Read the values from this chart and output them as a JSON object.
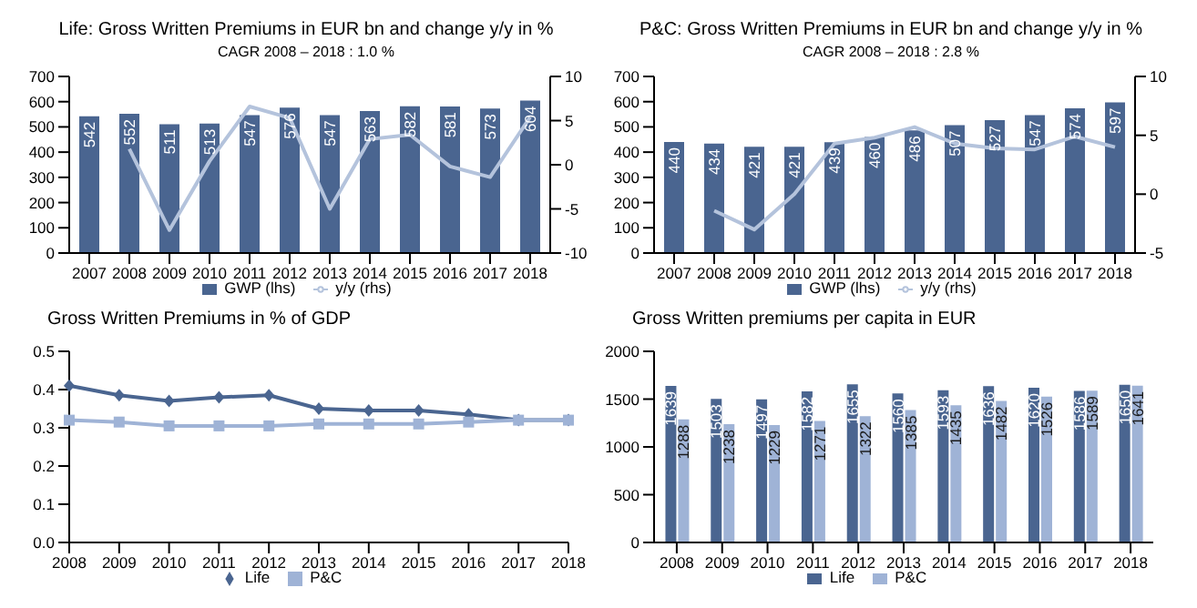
{
  "chart_data": [
    {
      "type": "bar",
      "title": "Life: Gross Written Premiums in EUR bn and change y/y in %",
      "subtitle": "CAGR 2008 – 2018 : 1.0 %",
      "categories": [
        "2007",
        "2008",
        "2009",
        "2010",
        "2011",
        "2012",
        "2013",
        "2014",
        "2015",
        "2016",
        "2017",
        "2018"
      ],
      "series": [
        {
          "name": "GWP (lhs)",
          "color": "#4a6590",
          "values": [
            542,
            552,
            511,
            513,
            547,
            576,
            547,
            563,
            582,
            581,
            573,
            604
          ],
          "value_labels": [
            "542",
            "552",
            "511",
            "513",
            "547",
            "576",
            "547",
            "563",
            "582",
            "581",
            "573",
            "604"
          ]
        },
        {
          "name": "y/y (rhs)",
          "type": "line",
          "axis": "y2",
          "color": "#b4c3dc",
          "values": [
            null,
            1.8,
            -7.4,
            0.4,
            6.6,
            5.3,
            -5.0,
            2.9,
            3.4,
            -0.2,
            -1.4,
            5.4
          ]
        }
      ],
      "ylim": [
        0,
        700
      ],
      "yticks": [
        0,
        100,
        200,
        300,
        400,
        500,
        600,
        700
      ],
      "y2lim": [
        -10,
        10
      ],
      "y2ticks": [
        -10,
        -5,
        0,
        5,
        10
      ],
      "legend": "bottom",
      "marker": "none"
    },
    {
      "type": "bar",
      "title": "P&C: Gross Written Premiums in EUR bn and change y/y in %",
      "subtitle": "CAGR 2008 – 2018 : 2.8 %",
      "categories": [
        "2007",
        "2008",
        "2009",
        "2010",
        "2011",
        "2012",
        "2013",
        "2014",
        "2015",
        "2016",
        "2017",
        "2018"
      ],
      "series": [
        {
          "name": "GWP (lhs)",
          "color": "#4a6590",
          "values": [
            440,
            434,
            421,
            421,
            439,
            460,
            486,
            507,
            527,
            547,
            574,
            597
          ],
          "value_labels": [
            "440",
            "434",
            "421",
            "421",
            "439",
            "460",
            "486",
            "507",
            "527",
            "547",
            "574",
            "597"
          ]
        },
        {
          "name": "y/y (rhs)",
          "type": "line",
          "axis": "y2",
          "color": "#b4c3dc",
          "values": [
            null,
            -1.4,
            -3.0,
            0.0,
            4.3,
            4.8,
            5.7,
            4.3,
            3.9,
            3.8,
            4.9,
            4.0
          ]
        }
      ],
      "ylim": [
        0,
        700
      ],
      "yticks": [
        0,
        100,
        200,
        300,
        400,
        500,
        600,
        700
      ],
      "y2lim": [
        -5,
        10
      ],
      "y2ticks": [
        -5,
        0,
        5,
        10
      ],
      "legend": "bottom",
      "marker": "none"
    },
    {
      "type": "line",
      "title": "Gross Written Premiums in % of GDP",
      "categories": [
        "2008",
        "2009",
        "2010",
        "2011",
        "2012",
        "2013",
        "2014",
        "2015",
        "2016",
        "2017",
        "2018"
      ],
      "series": [
        {
          "name": "Life",
          "color": "#4a6590",
          "marker": "diamond",
          "values": [
            0.41,
            0.385,
            0.37,
            0.38,
            0.385,
            0.35,
            0.345,
            0.345,
            0.335,
            0.32,
            0.32
          ]
        },
        {
          "name": "P&C",
          "color": "#9fb3d6",
          "marker": "square",
          "values": [
            0.32,
            0.315,
            0.305,
            0.305,
            0.305,
            0.31,
            0.31,
            0.31,
            0.315,
            0.32,
            0.32
          ]
        }
      ],
      "ylim": [
        0,
        0.5
      ],
      "yticks": [
        {
          "value": 0,
          "label": "0.0"
        },
        0.1,
        0.2,
        0.3,
        0.4,
        0.5
      ],
      "legend": "bottom"
    },
    {
      "type": "bar",
      "title": "Gross Written premiums per capita in EUR",
      "categories": [
        "2008",
        "2009",
        "2010",
        "2011",
        "2012",
        "2013",
        "2014",
        "2015",
        "2016",
        "2017",
        "2018"
      ],
      "series": [
        {
          "name": "Life",
          "color": "#4a6590",
          "values": [
            1639,
            1503,
            1497,
            1582,
            1655,
            1560,
            1593,
            1636,
            1620,
            1586,
            1650
          ]
        },
        {
          "name": "P&C",
          "color": "#9fb3d6",
          "values": [
            1288,
            1238,
            1229,
            1271,
            1322,
            1385,
            1435,
            1482,
            1526,
            1589,
            1641
          ]
        }
      ],
      "ylim": [
        0,
        2000
      ],
      "yticks": [
        0,
        500,
        1000,
        1500,
        2000
      ],
      "legend": "bottom",
      "data_labels": true
    }
  ]
}
